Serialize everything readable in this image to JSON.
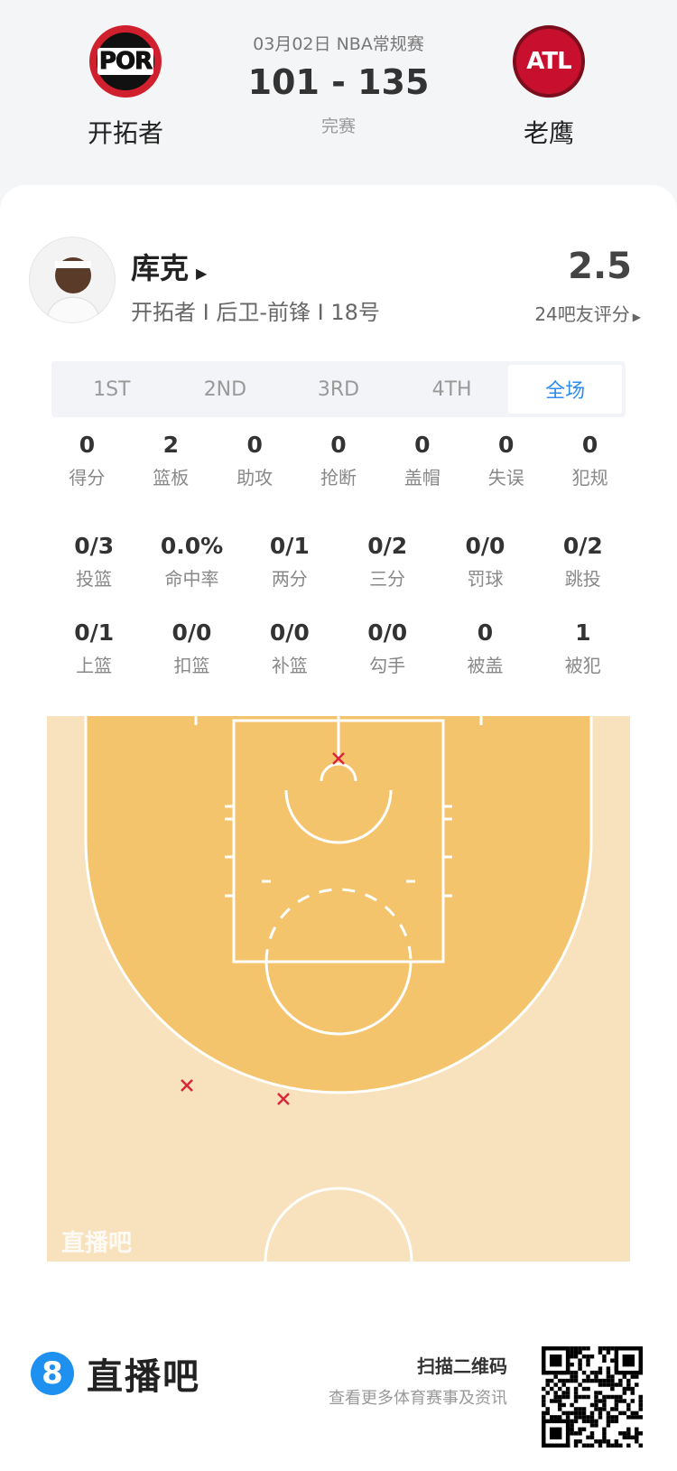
{
  "match": {
    "date_league": "03月02日 NBA常规赛",
    "score": "101 - 135",
    "status": "完赛",
    "home": {
      "abbr": "POR",
      "name": "开拓者"
    },
    "away": {
      "abbr": "ATL",
      "name": "老鹰"
    }
  },
  "player": {
    "name": "库克",
    "info": "开拓者 I 后卫-前锋 I 18号",
    "rating": "2.5",
    "rating_label": "24吧友评分"
  },
  "tabs": [
    {
      "label": "1ST"
    },
    {
      "label": "2ND"
    },
    {
      "label": "3RD"
    },
    {
      "label": "4TH"
    },
    {
      "label": "全场",
      "active": true
    }
  ],
  "stats": [
    [
      {
        "v": "0",
        "l": "得分"
      },
      {
        "v": "2",
        "l": "篮板"
      },
      {
        "v": "0",
        "l": "助攻"
      },
      {
        "v": "0",
        "l": "抢断"
      },
      {
        "v": "0",
        "l": "盖帽"
      },
      {
        "v": "0",
        "l": "失误"
      },
      {
        "v": "0",
        "l": "犯规"
      }
    ],
    [
      {
        "v": "0/3",
        "l": "投篮"
      },
      {
        "v": "0.0%",
        "l": "命中率"
      },
      {
        "v": "0/1",
        "l": "两分"
      },
      {
        "v": "0/2",
        "l": "三分"
      },
      {
        "v": "0/0",
        "l": "罚球"
      },
      {
        "v": "0/2",
        "l": "跳投"
      }
    ],
    [
      {
        "v": "0/1",
        "l": "上篮"
      },
      {
        "v": "0/0",
        "l": "扣篮"
      },
      {
        "v": "0/0",
        "l": "补篮"
      },
      {
        "v": "0/0",
        "l": "勾手"
      },
      {
        "v": "0",
        "l": "被盖"
      },
      {
        "v": "1",
        "l": "被犯"
      }
    ]
  ],
  "court": {
    "watermark": "直播吧",
    "colors": {
      "outside": "#f7e2bd",
      "inside": "#f4c46c",
      "miss": "#d9263a"
    }
  },
  "footer": {
    "brand_mark": "8",
    "brand": "直播吧",
    "scan": "扫描二维码",
    "scan_sub": "查看更多体育赛事及资讯"
  }
}
